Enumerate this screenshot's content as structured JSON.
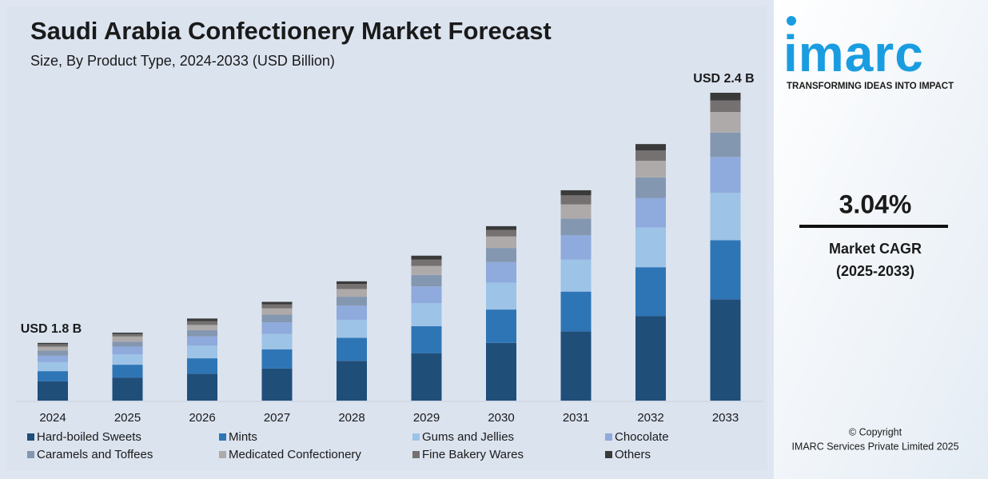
{
  "chart_data": {
    "type": "stacked-bar",
    "title": "Saudi Arabia Confectionery Market Forecast",
    "subtitle": "Size, By Product Type, 2024-2033 (USD Billion)",
    "categories": [
      "2024",
      "2025",
      "2026",
      "2027",
      "2028",
      "2029",
      "2030",
      "2031",
      "2032",
      "2033"
    ],
    "series": [
      {
        "name": "Hard-boiled Sweets",
        "color": "#1f4e79",
        "values": [
          0.15,
          0.18,
          0.21,
          0.25,
          0.31,
          0.37,
          0.45,
          0.54,
          0.66,
          0.79
        ]
      },
      {
        "name": "Mints",
        "color": "#2e75b6",
        "values": [
          0.08,
          0.1,
          0.12,
          0.15,
          0.18,
          0.21,
          0.26,
          0.31,
          0.38,
          0.46
        ]
      },
      {
        "name": "Gums and Jellies",
        "color": "#9dc3e6",
        "values": [
          0.07,
          0.08,
          0.1,
          0.12,
          0.14,
          0.18,
          0.21,
          0.25,
          0.31,
          0.37
        ]
      },
      {
        "name": "Chocolate",
        "color": "#8faadc",
        "values": [
          0.05,
          0.06,
          0.07,
          0.09,
          0.11,
          0.13,
          0.16,
          0.19,
          0.23,
          0.28
        ]
      },
      {
        "name": "Caramels and Toffees",
        "color": "#8497b0",
        "values": [
          0.04,
          0.04,
          0.05,
          0.06,
          0.07,
          0.09,
          0.11,
          0.13,
          0.16,
          0.19
        ]
      },
      {
        "name": "Medicated Confectionery",
        "color": "#aeaaaa",
        "values": [
          0.03,
          0.04,
          0.04,
          0.05,
          0.06,
          0.07,
          0.09,
          0.11,
          0.13,
          0.16
        ]
      },
      {
        "name": "Fine Bakery Wares",
        "color": "#757171",
        "values": [
          0.02,
          0.02,
          0.03,
          0.03,
          0.04,
          0.05,
          0.05,
          0.07,
          0.08,
          0.09
        ]
      },
      {
        "name": "Others",
        "color": "#3a3a3a",
        "values": [
          0.01,
          0.01,
          0.02,
          0.02,
          0.02,
          0.03,
          0.03,
          0.04,
          0.05,
          0.06
        ]
      }
    ],
    "annotations": [
      "USD 1.8 B",
      "USD 2.4 B"
    ]
  },
  "sidebar": {
    "logo": "imarc",
    "tagline": "TRANSFORMING IDEAS INTO IMPACT",
    "cagr": "3.04%",
    "cagr_label": "Market CAGR",
    "cagr_period": "(2025-2033)",
    "copyright": "© Copyright",
    "company": "IMARC Services Private Limited 2025"
  }
}
